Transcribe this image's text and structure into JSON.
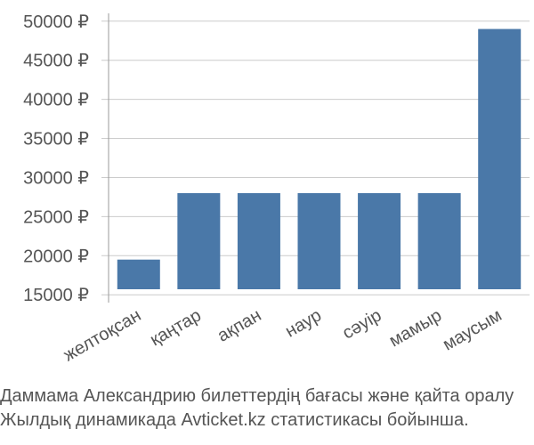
{
  "chart_data": {
    "type": "bar",
    "categories": [
      "желтоқсан",
      "қаңтар",
      "ақпан",
      "наур",
      "сәуір",
      "мамыр",
      "маусым"
    ],
    "values": [
      19500,
      28000,
      28000,
      28000,
      28000,
      28000,
      49000
    ],
    "ylim": [
      14000,
      51000
    ],
    "yticks": [
      15000,
      20000,
      25000,
      30000,
      35000,
      40000,
      45000,
      50000
    ],
    "ytick_labels": [
      "15000 ₽",
      "20000 ₽",
      "25000 ₽",
      "30000 ₽",
      "35000 ₽",
      "40000 ₽",
      "45000 ₽",
      "50000 ₽"
    ],
    "bar_color": "#4a78a8",
    "grid": true,
    "gridline_color": "#cccccc"
  },
  "caption": {
    "line1": "Даммама Александрию билеттердің бағасы және қайта оралу",
    "line2": "Жылдық динамикада Avticket.kz статистикасы бойынша."
  }
}
